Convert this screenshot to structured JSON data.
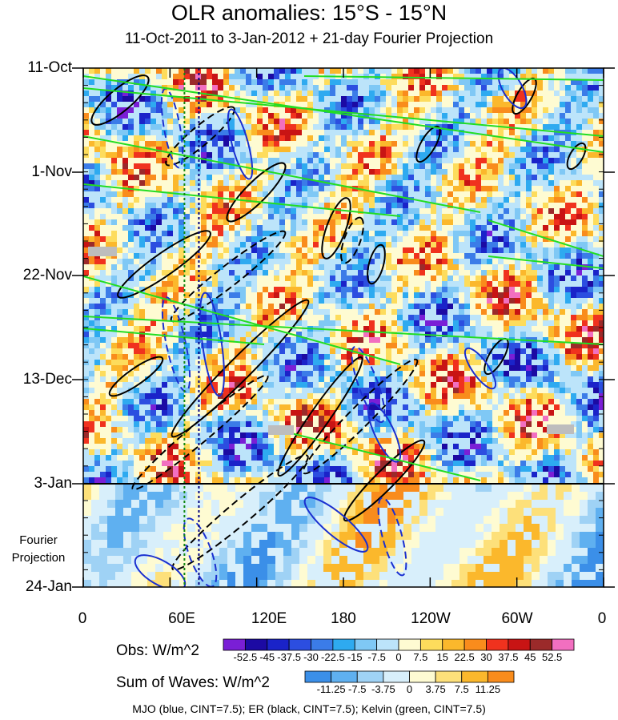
{
  "chart_data": {
    "type": "heatmap",
    "title": "OLR anomalies: 15°S - 15°N",
    "subtitle": "11-Oct-2011 to 3-Jan-2012 + 21-day Fourier Projection",
    "y_ticks": [
      "11-Oct",
      "1-Nov",
      "22-Nov",
      "13-Dec",
      "3-Jan",
      "24-Jan"
    ],
    "x_ticks": [
      "0",
      "60E",
      "120E",
      "180",
      "120W",
      "60W",
      "0"
    ],
    "projection_label_line1": "Fourier",
    "projection_label_line2": "Projection",
    "obs_colorbar": {
      "title": "Obs: W/m^2",
      "ticks": [
        "-52.5",
        "-45",
        "-37.5",
        "-30",
        "-22.5",
        "-15",
        "-7.5",
        "0",
        "7.5",
        "15",
        "22.5",
        "30",
        "37.5",
        "45",
        "52.5"
      ],
      "colors": [
        "#7a1fd6",
        "#1c0aa3",
        "#1a23c9",
        "#2c4ee0",
        "#3b7ce8",
        "#2eaaf0",
        "#7fc8f5",
        "#bce4fa",
        "#fefbd2",
        "#fddc5c",
        "#fbb82c",
        "#f98c1c",
        "#f0321e",
        "#c81414",
        "#9b2a2a",
        "#f26fc0"
      ]
    },
    "waves_colorbar": {
      "title": "Sum of Waves: W/m^2",
      "ticks": [
        "-11.25",
        "-7.5",
        "-3.75",
        "0",
        "3.75",
        "7.5",
        "11.25"
      ],
      "colors": [
        "#3b8fe8",
        "#5fb0f0",
        "#9fd2f5",
        "#d8effb",
        "#fefbd2",
        "#fde07a",
        "#fbb82c",
        "#f98c1c"
      ]
    },
    "contours": [
      {
        "name": "MJO",
        "color": "blue",
        "cint": 7.5
      },
      {
        "name": "ER",
        "color": "black",
        "cint": 7.5
      },
      {
        "name": "Kelvin",
        "color": "green",
        "cint": 7.5
      }
    ],
    "reference_lines_lon": [
      70,
      80
    ],
    "footer": "MJO (blue, CINT=7.5); ER (black, CINT=7.5); Kelvin (green, CINT=7.5)"
  }
}
